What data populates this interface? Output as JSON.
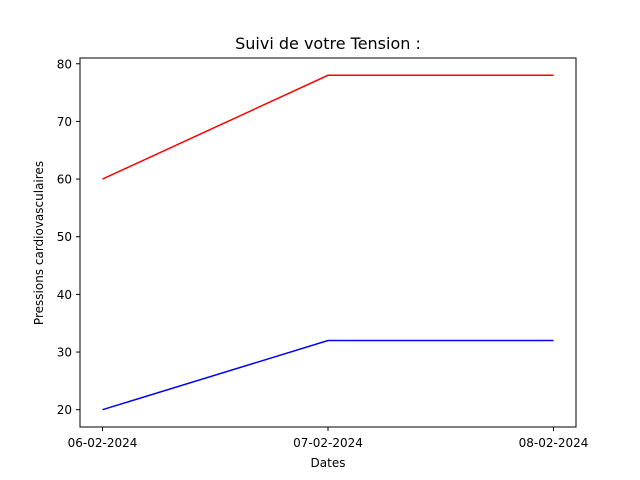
{
  "chart_data": {
    "type": "line",
    "title": "Suivi de votre Tension :",
    "xlabel": "Dates",
    "ylabel": "Pressions cardiovasculaires",
    "categories": [
      "06-02-2024",
      "07-02-2024",
      "08-02-2024"
    ],
    "series": [
      {
        "values": [
          60,
          78,
          78
        ],
        "color": "#ff0000"
      },
      {
        "values": [
          20,
          32,
          32
        ],
        "color": "#0000ff"
      }
    ],
    "yticks": [
      20,
      30,
      40,
      50,
      60,
      70,
      80
    ],
    "ylim": [
      17,
      81
    ],
    "grid": false,
    "legend": "none"
  }
}
